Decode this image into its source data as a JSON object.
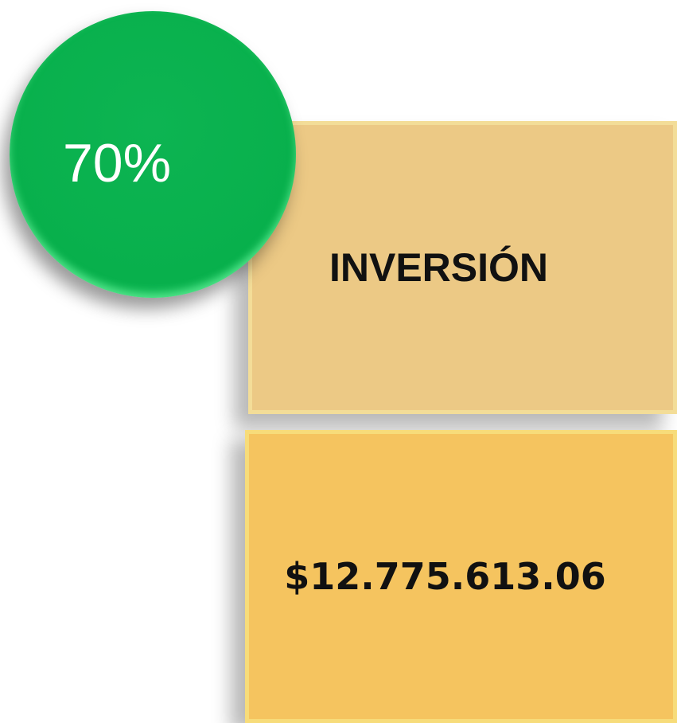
{
  "badge": {
    "label": "70%"
  },
  "cards": [
    {
      "text": "INVERSIÓN"
    },
    {
      "text": "$12.775.613.06"
    }
  ]
}
